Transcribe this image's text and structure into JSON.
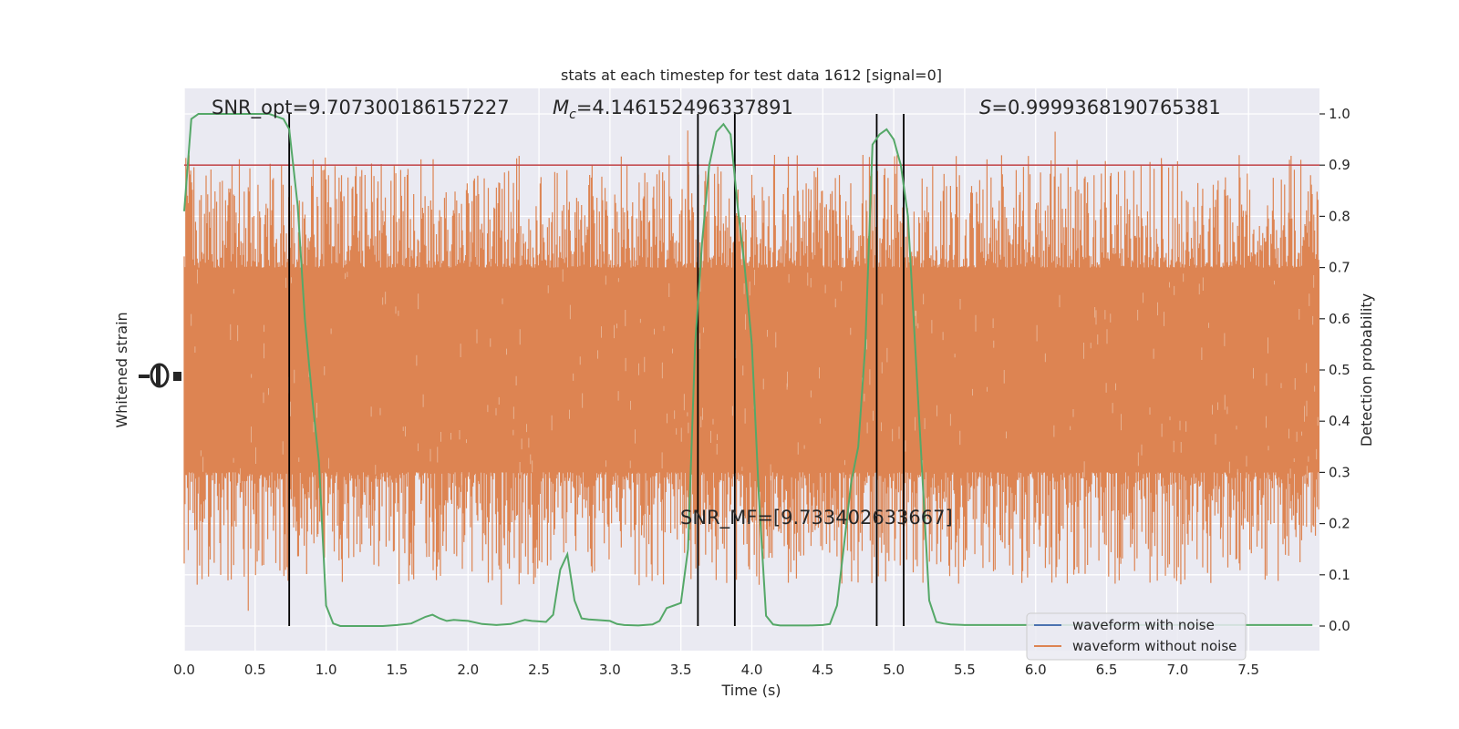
{
  "chart_data": {
    "type": "line",
    "title": "stats at each timestep for test data 1612 [signal=0]",
    "xlabel": "Time (s)",
    "ylabel_left": "Whitened strain",
    "ylabel_right": "Detection probability",
    "xlim": [
      0,
      8
    ],
    "ylim_right": [
      0,
      1
    ],
    "x_ticks": [
      "0.0",
      "0.5",
      "1.0",
      "1.5",
      "2.0",
      "2.5",
      "3.0",
      "3.5",
      "4.0",
      "4.5",
      "5.0",
      "5.5",
      "6.0",
      "6.5",
      "7.0",
      "7.5"
    ],
    "y_ticks_right": [
      "0.0",
      "0.1",
      "0.2",
      "0.3",
      "0.4",
      "0.5",
      "0.6",
      "0.7",
      "0.8",
      "0.9",
      "1.0"
    ],
    "grid": true,
    "threshold": 0.9,
    "vertical_lines": [
      0.74,
      3.62,
      3.88,
      4.88,
      5.07
    ],
    "annotations": {
      "snr_opt": "SNR_opt=9.707300186157227",
      "mc_prefix": "M",
      "mc_sub": "c",
      "mc_value": "=4.146152496337891",
      "s_prefix": "S",
      "s_value": "=0.9999368190765381",
      "snr_mf": "SNR_MF=[9.733402633667]"
    },
    "legend": {
      "position": "lower-right",
      "entries": [
        "waveform with noise",
        "waveform without noise"
      ]
    },
    "series": [
      {
        "name": "waveform with noise",
        "color": "#4c72b0",
        "values_visible": false
      },
      {
        "name": "waveform without noise",
        "color": "#dd8452",
        "envelope_core": [
          0.3,
          0.7
        ],
        "envelope_peak": [
          0.0,
          1.0
        ]
      },
      {
        "color": "#55a868",
        "x": [
          0.0,
          0.05,
          0.1,
          0.15,
          0.2,
          0.25,
          0.3,
          0.35,
          0.4,
          0.45,
          0.5,
          0.55,
          0.6,
          0.65,
          0.7,
          0.74,
          0.8,
          0.85,
          0.9,
          0.95,
          1.0,
          1.05,
          1.1,
          1.2,
          1.3,
          1.4,
          1.5,
          1.6,
          1.7,
          1.75,
          1.8,
          1.85,
          1.9,
          2.0,
          2.1,
          2.2,
          2.3,
          2.4,
          2.45,
          2.5,
          2.55,
          2.6,
          2.65,
          2.7,
          2.75,
          2.8,
          2.85,
          2.9,
          3.0,
          3.05,
          3.1,
          3.2,
          3.3,
          3.35,
          3.4,
          3.45,
          3.5,
          3.55,
          3.6,
          3.65,
          3.7,
          3.75,
          3.8,
          3.85,
          3.9,
          3.95,
          4.0,
          4.05,
          4.1,
          4.15,
          4.2,
          4.3,
          4.4,
          4.5,
          4.55,
          4.6,
          4.65,
          4.7,
          4.75,
          4.8,
          4.85,
          4.9,
          4.95,
          5.0,
          5.05,
          5.1,
          5.15,
          5.2,
          5.25,
          5.3,
          5.35,
          5.4,
          5.5,
          5.6,
          5.7,
          5.8,
          5.9,
          6.0,
          6.5,
          7.0,
          7.5,
          7.8,
          7.95
        ],
        "y": [
          0.81,
          0.99,
          1.0,
          1.0,
          1.0,
          1.0,
          1.0,
          1.0,
          1.0,
          1.0,
          1.0,
          1.0,
          1.0,
          0.995,
          0.99,
          0.97,
          0.82,
          0.6,
          0.45,
          0.32,
          0.04,
          0.005,
          0.0,
          0.0,
          0.0,
          0.0,
          0.002,
          0.005,
          0.018,
          0.022,
          0.015,
          0.01,
          0.012,
          0.01,
          0.004,
          0.002,
          0.004,
          0.012,
          0.01,
          0.009,
          0.008,
          0.022,
          0.11,
          0.14,
          0.05,
          0.015,
          0.013,
          0.012,
          0.01,
          0.004,
          0.002,
          0.001,
          0.003,
          0.01,
          0.035,
          0.04,
          0.045,
          0.15,
          0.55,
          0.75,
          0.9,
          0.965,
          0.98,
          0.96,
          0.82,
          0.7,
          0.55,
          0.25,
          0.02,
          0.003,
          0.001,
          0.001,
          0.001,
          0.002,
          0.004,
          0.04,
          0.16,
          0.28,
          0.35,
          0.55,
          0.94,
          0.96,
          0.97,
          0.95,
          0.9,
          0.8,
          0.55,
          0.3,
          0.05,
          0.008,
          0.005,
          0.003,
          0.002,
          0.002,
          0.002,
          0.002,
          0.002,
          0.002,
          0.002,
          0.002,
          0.002,
          0.002,
          0.002
        ]
      }
    ]
  }
}
